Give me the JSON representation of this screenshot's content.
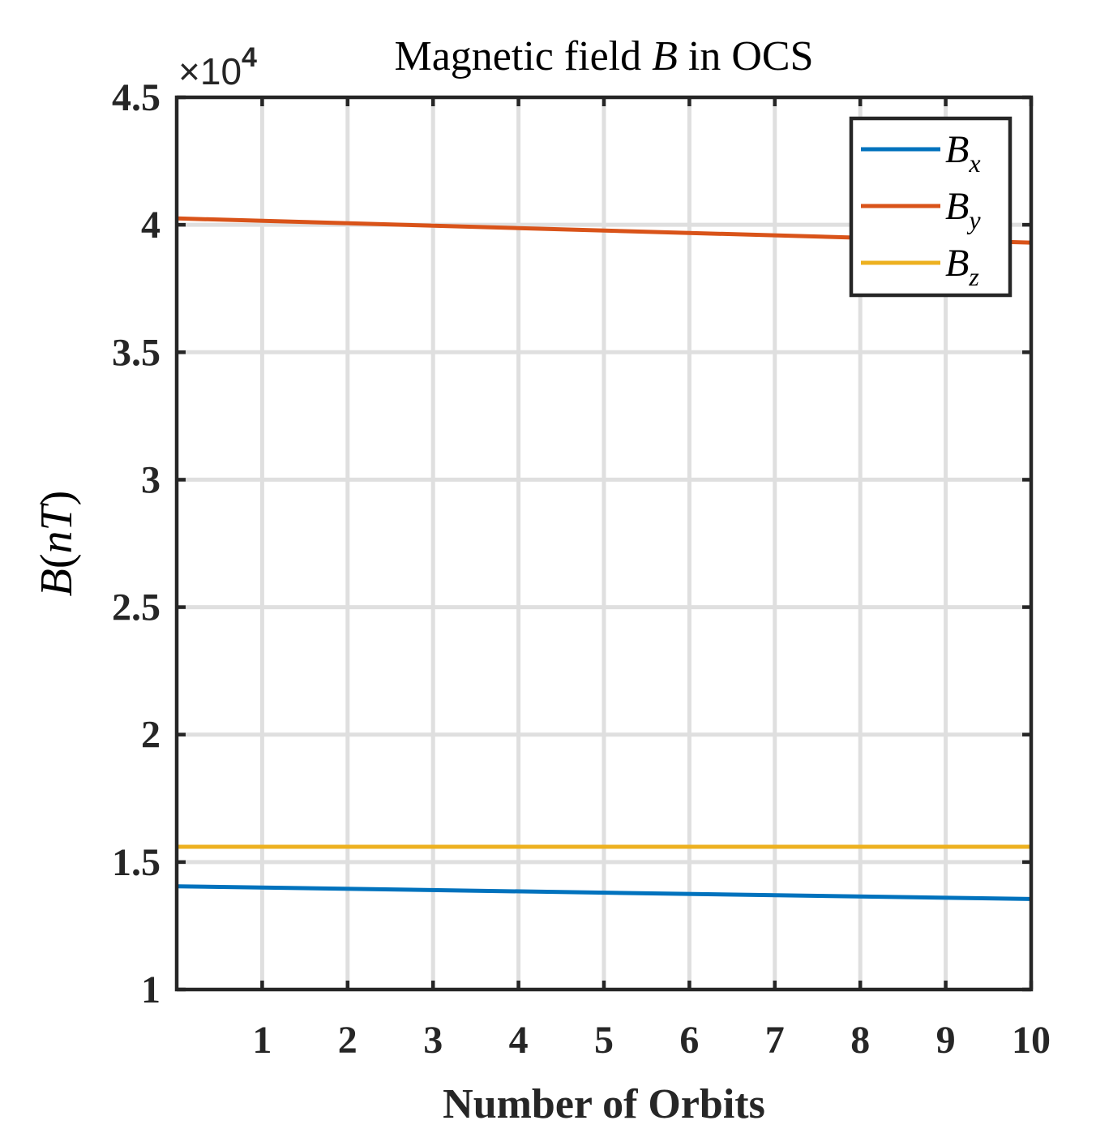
{
  "chart_data": {
    "type": "line",
    "title": {
      "prefix": "Magnetic field ",
      "symbol": "B",
      "suffix": " in OCS"
    },
    "xlabel": "Number of Orbits",
    "ylabel": {
      "symbol": "B",
      "unit": "(nT)"
    },
    "y_multiplier": {
      "base": "×10",
      "exponent": "4"
    },
    "xlim": [
      0,
      10
    ],
    "ylim": [
      1,
      4.5
    ],
    "xticks": [
      1,
      2,
      3,
      4,
      5,
      6,
      7,
      8,
      9,
      10
    ],
    "xtick_labels": [
      "1",
      "2",
      "3",
      "4",
      "5",
      "6",
      "7",
      "8",
      "9",
      "10"
    ],
    "yticks": [
      1,
      1.5,
      2,
      2.5,
      3,
      3.5,
      4,
      4.5
    ],
    "ytick_labels": [
      "1",
      "1.5",
      "2",
      "2.5",
      "3",
      "3.5",
      "4",
      "4.5"
    ],
    "grid": true,
    "legend_position": "top-right",
    "series": [
      {
        "name": "Bx",
        "label_base": "B",
        "label_sub": "x",
        "color": "#0072BD",
        "x": [
          0,
          10
        ],
        "values": [
          1.405,
          1.355
        ]
      },
      {
        "name": "By",
        "label_base": "B",
        "label_sub": "y",
        "color": "#D95319",
        "x": [
          0,
          10
        ],
        "values": [
          4.025,
          3.93
        ]
      },
      {
        "name": "Bz",
        "label_base": "B",
        "label_sub": "z",
        "color": "#EDB120",
        "x": [
          0,
          10
        ],
        "values": [
          1.56,
          1.56
        ]
      }
    ]
  }
}
